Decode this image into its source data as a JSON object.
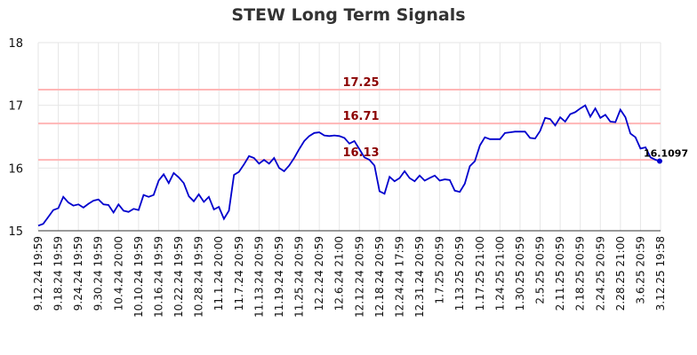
{
  "chart_data": {
    "type": "line",
    "title": "STEW Long Term Signals",
    "ylim": [
      15,
      18
    ],
    "yticks": [
      "15",
      "16",
      "17",
      "18"
    ],
    "grid": true,
    "colors": {
      "line": "#0000cd",
      "level": "#ffb6b6",
      "level_label": "#8b0000",
      "grid": "#e6e6e6"
    },
    "x_ticks": [
      "9.12.24 19:59",
      "9.18.24 19:59",
      "9.24.24 19:59",
      "9.30.24 19:59",
      "10.4.24 20:00",
      "10.10.24 19:59",
      "10.16.24 19:59",
      "10.22.24 19:59",
      "10.28.24 19:59",
      "11.1.24 20:00",
      "11.7.24 20:59",
      "11.13.24 20:59",
      "11.19.24 20:59",
      "11.25.24 20:59",
      "12.2.24 20:59",
      "12.6.24 21:00",
      "12.12.24 20:59",
      "12.18.24 20:59",
      "12.24.24 17:59",
      "12.31.24 20:59",
      "1.7.25 20:59",
      "1.13.25 20:59",
      "1.17.25 21:00",
      "1.24.25 21:00",
      "1.30.25 20:59",
      "2.5.25 20:59",
      "2.11.25 20:59",
      "2.18.25 20:59",
      "2.24.25 20:59",
      "2.28.25 21:00",
      "3.6.25 20:59",
      "3.12.25 19:58"
    ],
    "levels": [
      {
        "value": 17.25,
        "label": "17.25"
      },
      {
        "value": 16.71,
        "label": "16.71"
      },
      {
        "value": 16.13,
        "label": "16.13"
      }
    ],
    "last_value_label": "16.1097",
    "series": [
      {
        "values": [
          15.08,
          15.11,
          15.22,
          15.33,
          15.36,
          15.54,
          15.45,
          15.4,
          15.42,
          15.37,
          15.43,
          15.48,
          15.5,
          15.42,
          15.41,
          15.29,
          15.42,
          15.32,
          15.3,
          15.35,
          15.33,
          15.57,
          15.54,
          15.57,
          15.8,
          15.9,
          15.76,
          15.92,
          15.85,
          15.76,
          15.55,
          15.47,
          15.58,
          15.46,
          15.54,
          15.34,
          15.38,
          15.19,
          15.32,
          15.89,
          15.94,
          16.06,
          16.19,
          16.16,
          16.07,
          16.13,
          16.07,
          16.16,
          16.0,
          15.95,
          16.04,
          16.16,
          16.3,
          16.43,
          16.51,
          16.56,
          16.57,
          16.52,
          16.51,
          16.52,
          16.51,
          16.48,
          16.39,
          16.43,
          16.3,
          16.17,
          16.13,
          16.04,
          15.63,
          15.59,
          15.86,
          15.79,
          15.84,
          15.95,
          15.84,
          15.79,
          15.88,
          15.8,
          15.84,
          15.88,
          15.8,
          15.82,
          15.81,
          15.64,
          15.62,
          15.75,
          16.03,
          16.11,
          16.36,
          16.49,
          16.46,
          16.46,
          16.46,
          16.56,
          16.57,
          16.58,
          16.58,
          16.58,
          16.48,
          16.47,
          16.59,
          16.8,
          16.78,
          16.68,
          16.81,
          16.74,
          16.86,
          16.89,
          16.95,
          17.0,
          16.82,
          16.95,
          16.8,
          16.85,
          16.74,
          16.73,
          16.93,
          16.81,
          16.55,
          16.49,
          16.31,
          16.33,
          16.17,
          16.13,
          16.11
        ]
      }
    ]
  }
}
